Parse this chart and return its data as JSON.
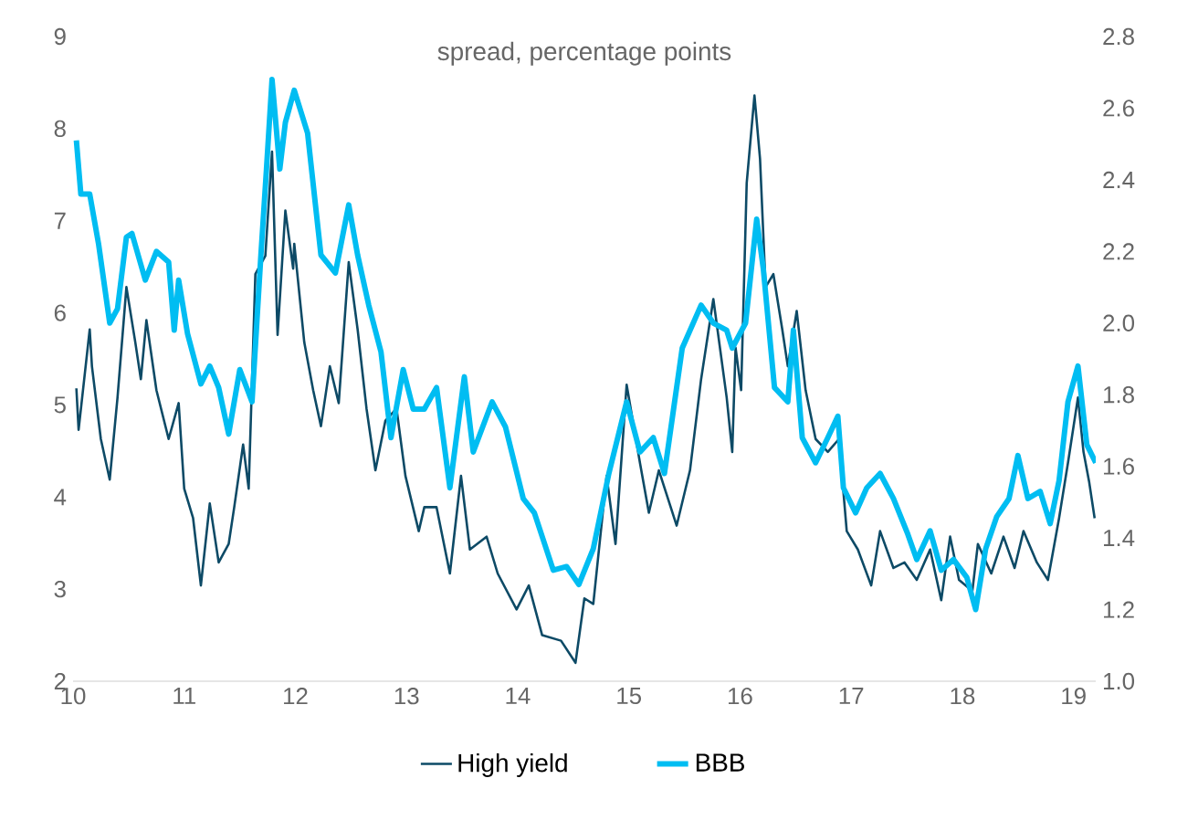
{
  "chart_data": {
    "type": "line",
    "title": "spread, percentage points",
    "xlim": [
      10,
      19.2
    ],
    "xticks": [
      10,
      11,
      12,
      13,
      14,
      15,
      16,
      17,
      18,
      19
    ],
    "ylim": [
      2,
      9
    ],
    "yticks": [
      2,
      3,
      4,
      5,
      6,
      7,
      8,
      9
    ],
    "y2lim": [
      1.0,
      2.8
    ],
    "y2ticks": [
      {
        "value": 1.0,
        "label": "1.0"
      },
      {
        "value": 1.2,
        "label": "1.2"
      },
      {
        "value": 1.4,
        "label": "1.4"
      },
      {
        "value": 1.6,
        "label": "1.6"
      },
      {
        "value": 1.8,
        "label": "1.8"
      },
      {
        "value": 2.0,
        "label": "2.0"
      },
      {
        "value": 2.2,
        "label": "2.2"
      },
      {
        "value": 2.4,
        "label": "2.4"
      },
      {
        "value": 2.6,
        "label": "2.6"
      },
      {
        "value": 2.8,
        "label": "2.8"
      }
    ],
    "legend": "bottom",
    "series": [
      {
        "name": "High yield",
        "color": "#0d4a66",
        "x": [
          10.03,
          10.05,
          10.15,
          10.17,
          10.25,
          10.33,
          10.4,
          10.48,
          10.56,
          10.61,
          10.66,
          10.75,
          10.86,
          10.95,
          11.0,
          11.08,
          11.15,
          11.23,
          11.31,
          11.4,
          11.45,
          11.53,
          11.58,
          11.64,
          11.73,
          11.79,
          11.84,
          11.91,
          11.98,
          11.99,
          12.08,
          12.16,
          12.23,
          12.31,
          12.39,
          12.48,
          12.56,
          12.64,
          12.72,
          12.81,
          12.91,
          12.99,
          13.11,
          13.16,
          13.27,
          13.39,
          13.49,
          13.57,
          13.72,
          13.82,
          13.99,
          14.1,
          14.22,
          14.39,
          14.52,
          14.6,
          14.68,
          14.8,
          14.88,
          14.98,
          15.1,
          15.18,
          15.27,
          15.43,
          15.55,
          15.65,
          15.76,
          15.88,
          15.93,
          15.96,
          16.01,
          16.06,
          16.13,
          16.18,
          16.23,
          16.3,
          16.38,
          16.43,
          16.51,
          16.59,
          16.68,
          16.79,
          16.89,
          16.96,
          17.06,
          17.18,
          17.26,
          17.38,
          17.48,
          17.59,
          17.71,
          17.81,
          17.89,
          17.97,
          18.09,
          18.14,
          18.26,
          18.37,
          18.47,
          18.55,
          18.67,
          18.77,
          18.87,
          18.95,
          19.04,
          19.09,
          19.14,
          19.19
        ],
        "values": [
          5.18,
          4.73,
          5.82,
          5.42,
          4.63,
          4.19,
          5.08,
          6.28,
          5.68,
          5.28,
          5.92,
          5.16,
          4.63,
          5.02,
          4.09,
          3.77,
          3.04,
          3.93,
          3.29,
          3.49,
          3.89,
          4.57,
          4.09,
          6.42,
          6.62,
          7.75,
          5.76,
          7.11,
          6.48,
          6.75,
          5.68,
          5.16,
          4.77,
          5.42,
          5.02,
          6.55,
          5.82,
          4.96,
          4.29,
          4.83,
          4.96,
          4.23,
          3.63,
          3.89,
          3.89,
          3.17,
          4.23,
          3.43,
          3.57,
          3.17,
          2.78,
          3.04,
          2.5,
          2.44,
          2.2,
          2.9,
          2.84,
          4.23,
          3.49,
          5.22,
          4.37,
          3.83,
          4.29,
          3.69,
          4.29,
          5.28,
          6.15,
          5.08,
          4.49,
          5.62,
          5.16,
          7.41,
          8.36,
          7.67,
          6.28,
          6.42,
          5.82,
          5.42,
          6.02,
          5.16,
          4.63,
          4.49,
          4.63,
          3.63,
          3.43,
          3.04,
          3.63,
          3.23,
          3.29,
          3.1,
          3.43,
          2.88,
          3.57,
          3.1,
          2.98,
          3.49,
          3.17,
          3.57,
          3.23,
          3.63,
          3.29,
          3.1,
          3.77,
          4.37,
          5.08,
          4.49,
          4.17,
          3.77
        ]
      },
      {
        "name": "BBB",
        "color": "#00bdf2",
        "axis": "y2",
        "x": [
          10.03,
          10.07,
          10.15,
          10.23,
          10.33,
          10.4,
          10.48,
          10.53,
          10.65,
          10.75,
          10.86,
          10.91,
          10.95,
          11.03,
          11.15,
          11.23,
          11.31,
          11.4,
          11.5,
          11.61,
          11.69,
          11.74,
          11.79,
          11.86,
          11.91,
          11.99,
          12.11,
          12.23,
          12.36,
          12.48,
          12.56,
          12.66,
          12.77,
          12.86,
          12.97,
          13.06,
          13.16,
          13.27,
          13.39,
          13.52,
          13.6,
          13.77,
          13.89,
          14.05,
          14.15,
          14.32,
          14.44,
          14.55,
          14.68,
          14.82,
          14.98,
          15.1,
          15.22,
          15.32,
          15.48,
          15.65,
          15.76,
          15.88,
          15.93,
          16.05,
          16.15,
          16.21,
          16.31,
          16.43,
          16.48,
          16.56,
          16.68,
          16.79,
          16.88,
          16.93,
          17.04,
          17.14,
          17.26,
          17.38,
          17.51,
          17.59,
          17.71,
          17.81,
          17.92,
          18.04,
          18.12,
          18.21,
          18.31,
          18.42,
          18.5,
          18.59,
          18.7,
          18.79,
          18.87,
          18.95,
          19.04,
          19.12,
          19.2
        ],
        "values": [
          2.51,
          2.36,
          2.36,
          2.22,
          2.0,
          2.04,
          2.24,
          2.25,
          2.12,
          2.2,
          2.17,
          1.98,
          2.12,
          1.97,
          1.83,
          1.88,
          1.82,
          1.69,
          1.87,
          1.78,
          2.19,
          2.43,
          2.68,
          2.43,
          2.56,
          2.65,
          2.53,
          2.19,
          2.14,
          2.33,
          2.19,
          2.05,
          1.92,
          1.68,
          1.87,
          1.76,
          1.76,
          1.82,
          1.54,
          1.85,
          1.64,
          1.78,
          1.71,
          1.51,
          1.47,
          1.31,
          1.32,
          1.27,
          1.37,
          1.58,
          1.78,
          1.64,
          1.68,
          1.58,
          1.93,
          2.05,
          2.0,
          1.98,
          1.93,
          2.0,
          2.29,
          2.15,
          1.82,
          1.78,
          1.98,
          1.68,
          1.61,
          1.68,
          1.74,
          1.54,
          1.47,
          1.54,
          1.58,
          1.51,
          1.41,
          1.34,
          1.42,
          1.31,
          1.34,
          1.29,
          1.2,
          1.37,
          1.46,
          1.51,
          1.63,
          1.51,
          1.53,
          1.44,
          1.56,
          1.78,
          1.88,
          1.66,
          1.61
        ]
      }
    ]
  }
}
